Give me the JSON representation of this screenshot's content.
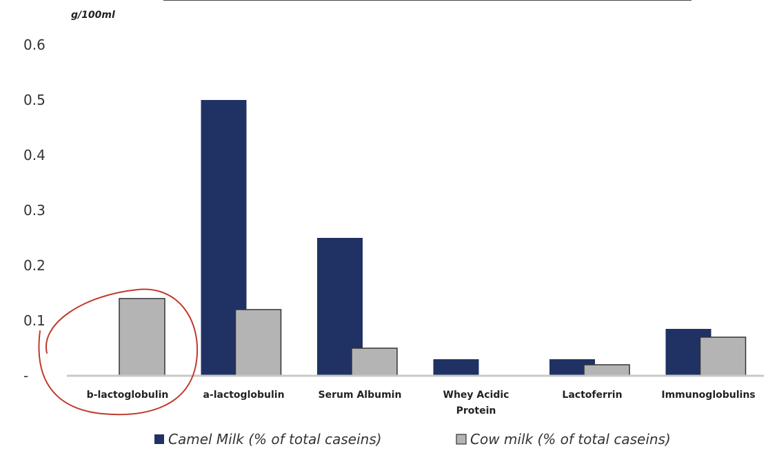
{
  "chart_data": {
    "type": "bar",
    "ylabel": "g/100ml",
    "ylim": [
      0,
      0.6
    ],
    "y_ticks": [
      "-",
      "0.1",
      "0.2",
      "0.3",
      "0.4",
      "0.5",
      "0.6"
    ],
    "categories": [
      [
        "b-lactoglobulin"
      ],
      [
        "a-lactoglobulin"
      ],
      [
        "Serum Albumin"
      ],
      [
        "Whey Acidic",
        "Protein"
      ],
      [
        "Lactoferrin"
      ],
      [
        "Immunoglobulins"
      ]
    ],
    "series": [
      {
        "name": "Camel Milk (% of total caseins)",
        "color": "#203264",
        "values": [
          0,
          0.5,
          0.25,
          0.03,
          0.03,
          0.085
        ]
      },
      {
        "name": "Cow milk (% of total caseins)",
        "color": "#b4b4b4",
        "values": [
          0.14,
          0.12,
          0.05,
          0,
          0.02,
          0.07
        ]
      }
    ],
    "legend_position": "bottom",
    "annotation": {
      "type": "hand-drawn-circle",
      "color": "#c0392b",
      "target_category_index": 0
    }
  }
}
